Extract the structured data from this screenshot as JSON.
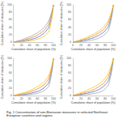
{
  "caption": "Fig. 1 Concentration of non-Bioreason measures in selected Northeast European countries and regions",
  "chart_data": [
    {
      "type": "line",
      "xlabel": "Cumulative share of population (%)",
      "ylabel": "Cumulative share of measures (%)",
      "x": [
        0,
        10,
        20,
        30,
        40,
        50,
        60,
        70,
        80,
        90,
        100
      ],
      "xlim": [
        0,
        100
      ],
      "xticks": [
        0,
        20,
        40,
        60,
        80,
        100
      ],
      "ylim": [
        0,
        100
      ],
      "yticks": [
        0,
        20,
        40,
        60,
        80,
        100
      ],
      "grid": false,
      "series": [
        {
          "color": "#4472c4",
          "values": [
            0,
            1,
            2,
            4,
            6,
            9,
            13,
            19,
            28,
            45,
            100
          ]
        },
        {
          "color": "#ed7d31",
          "values": [
            0,
            2,
            4,
            7,
            10,
            14,
            19,
            26,
            36,
            55,
            100
          ]
        },
        {
          "color": "#a5a5a5",
          "values": [
            0,
            3,
            6,
            10,
            14,
            19,
            25,
            33,
            44,
            62,
            100
          ]
        },
        {
          "color": "#ffc000",
          "values": [
            0,
            0.5,
            1,
            2,
            3,
            5,
            8,
            12,
            19,
            33,
            100
          ]
        }
      ]
    },
    {
      "type": "line",
      "xlabel": "Cumulative share of population (%)",
      "ylabel": "Cumulative share of measures (%)",
      "x": [
        0,
        10,
        20,
        30,
        40,
        50,
        60,
        70,
        80,
        90,
        100
      ],
      "xlim": [
        0,
        100
      ],
      "xticks": [
        0,
        20,
        40,
        60,
        80,
        100
      ],
      "ylim": [
        0,
        100
      ],
      "yticks": [
        0,
        20,
        40,
        60,
        80,
        100
      ],
      "grid": false,
      "series": [
        {
          "color": "#4472c4",
          "values": [
            0,
            1,
            3,
            5,
            8,
            11,
            16,
            22,
            31,
            48,
            100
          ]
        },
        {
          "color": "#ed7d31",
          "values": [
            0,
            2,
            5,
            8,
            12,
            16,
            22,
            29,
            39,
            58,
            100
          ]
        },
        {
          "color": "#a5a5a5",
          "values": [
            0,
            0.5,
            1,
            2,
            4,
            6,
            9,
            14,
            22,
            38,
            100
          ]
        },
        {
          "color": "#ffc000",
          "values": [
            0,
            3,
            7,
            11,
            16,
            21,
            27,
            35,
            46,
            64,
            100
          ]
        }
      ]
    },
    {
      "type": "line",
      "xlabel": "Cumulative share of population (%)",
      "ylabel": "Cumulative share of measures (%)",
      "x": [
        0,
        10,
        20,
        30,
        40,
        50,
        60,
        70,
        80,
        90,
        100
      ],
      "xlim": [
        0,
        100
      ],
      "xticks": [
        0,
        20,
        40,
        60,
        80,
        100
      ],
      "ylim": [
        0,
        100
      ],
      "yticks": [
        0,
        20,
        40,
        60,
        80,
        100
      ],
      "grid": false,
      "series": [
        {
          "color": "#4472c4",
          "values": [
            0,
            1,
            2,
            3,
            5,
            8,
            11,
            16,
            24,
            40,
            100
          ]
        },
        {
          "color": "#ed7d31",
          "values": [
            0,
            2,
            4,
            6,
            9,
            13,
            18,
            24,
            33,
            51,
            100
          ]
        },
        {
          "color": "#a5a5a5",
          "values": [
            0,
            0.5,
            1,
            1.5,
            2.5,
            4,
            6,
            10,
            16,
            30,
            100
          ]
        },
        {
          "color": "#ffc000",
          "values": [
            0,
            3,
            6,
            9,
            13,
            18,
            24,
            31,
            41,
            59,
            100
          ]
        }
      ]
    },
    {
      "type": "line",
      "xlabel": "Cumulative share of population (%)",
      "ylabel": "Cumulative share of measures (%)",
      "x": [
        0,
        10,
        20,
        30,
        40,
        50,
        60,
        70,
        80,
        90,
        100
      ],
      "xlim": [
        0,
        100
      ],
      "xticks": [
        0,
        20,
        40,
        60,
        80,
        100
      ],
      "ylim": [
        0,
        100
      ],
      "yticks": [
        0,
        20,
        40,
        60,
        80,
        100
      ],
      "grid": false,
      "series": [
        {
          "color": "#4472c4",
          "values": [
            0,
            1,
            3,
            5,
            7,
            10,
            14,
            20,
            29,
            46,
            100
          ]
        },
        {
          "color": "#ed7d31",
          "values": [
            0,
            2,
            5,
            8,
            11,
            15,
            21,
            28,
            38,
            57,
            100
          ]
        },
        {
          "color": "#a5a5a5",
          "values": [
            0,
            0.5,
            1,
            2,
            3,
            5,
            7,
            11,
            18,
            35,
            100
          ]
        },
        {
          "color": "#ffc000",
          "values": [
            0,
            4,
            8,
            12,
            17,
            22,
            28,
            36,
            47,
            66,
            100
          ]
        }
      ]
    }
  ]
}
